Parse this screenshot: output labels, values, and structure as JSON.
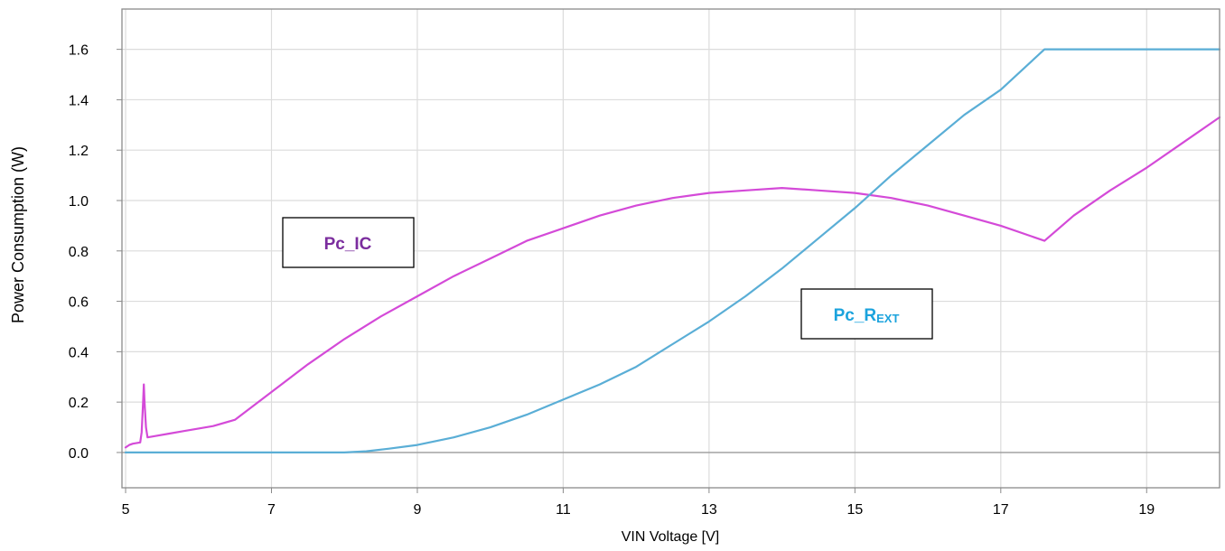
{
  "chart_data": {
    "type": "line",
    "xlabel": "VIN Voltage [V]",
    "ylabel": "Power Consumption (W)",
    "xlim": [
      4.95,
      20.0
    ],
    "ylim": [
      -0.14,
      1.76
    ],
    "x_ticks": [
      5,
      7,
      9,
      11,
      13,
      15,
      17,
      19
    ],
    "x_tick_labels": [
      "5",
      "7",
      "9",
      "11",
      "13",
      "15",
      "17",
      "19"
    ],
    "y_ticks": [
      0.0,
      0.2,
      0.4,
      0.6,
      0.8,
      1.0,
      1.2,
      1.4,
      1.6
    ],
    "y_tick_labels": [
      "0.0",
      "0.2",
      "0.4",
      "0.6",
      "0.8",
      "1.0",
      "1.2",
      "1.4",
      "1.6"
    ],
    "grid": true,
    "series": [
      {
        "name": "Pc_IC",
        "color": "#d44ad8",
        "x": [
          5.0,
          5.05,
          5.1,
          5.2,
          5.22,
          5.24,
          5.25,
          5.26,
          5.28,
          5.3,
          5.4,
          5.6,
          5.8,
          6.0,
          6.2,
          6.5,
          7.0,
          7.5,
          8.0,
          8.5,
          9.0,
          9.5,
          10.0,
          10.5,
          11.0,
          11.5,
          12.0,
          12.5,
          13.0,
          13.5,
          14.0,
          14.5,
          15.0,
          15.5,
          16.0,
          16.5,
          17.0,
          17.6,
          18.0,
          18.5,
          19.0,
          19.5,
          20.0
        ],
        "y": [
          0.02,
          0.03,
          0.035,
          0.04,
          0.08,
          0.2,
          0.27,
          0.2,
          0.1,
          0.06,
          0.065,
          0.075,
          0.085,
          0.095,
          0.105,
          0.13,
          0.24,
          0.35,
          0.45,
          0.54,
          0.62,
          0.7,
          0.77,
          0.84,
          0.89,
          0.94,
          0.98,
          1.01,
          1.03,
          1.04,
          1.05,
          1.04,
          1.03,
          1.01,
          0.98,
          0.94,
          0.9,
          0.84,
          0.94,
          1.04,
          1.13,
          1.23,
          1.33
        ]
      },
      {
        "name": "Pc_R_EXT",
        "color": "#5aaed6",
        "x": [
          5.0,
          6.0,
          7.0,
          8.0,
          8.3,
          8.6,
          9.0,
          9.5,
          10.0,
          10.5,
          11.0,
          11.5,
          12.0,
          12.5,
          13.0,
          13.5,
          14.0,
          14.5,
          15.0,
          15.5,
          16.0,
          16.5,
          17.0,
          17.6,
          18.0,
          19.0,
          20.0
        ],
        "y": [
          0.0,
          0.0,
          0.0,
          0.0,
          0.005,
          0.015,
          0.03,
          0.06,
          0.1,
          0.15,
          0.21,
          0.27,
          0.34,
          0.43,
          0.52,
          0.62,
          0.73,
          0.85,
          0.97,
          1.1,
          1.22,
          1.34,
          1.44,
          1.6,
          1.6,
          1.6,
          1.6
        ]
      }
    ],
    "annotations": [
      {
        "id": "pc-ic",
        "text": "Pc_IC",
        "color": "#7b2d9e",
        "series": "Pc_IC"
      },
      {
        "id": "pc-rext",
        "text_main": "Pc_R",
        "text_sub": "EXT",
        "color": "#1ba3dd",
        "series": "Pc_R_EXT"
      }
    ]
  }
}
